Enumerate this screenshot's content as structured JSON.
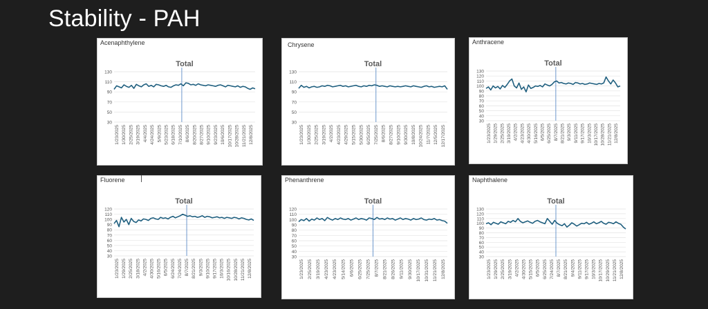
{
  "slide": {
    "title": "Stability - PAH"
  },
  "colors": {
    "series": "#1f5f7f",
    "marker": "#4a7fc1",
    "grid": "#e3e3e3",
    "axis_text": "#555555"
  },
  "chart_data": [
    {
      "panel_label": "Acenaphthylene",
      "type": "line",
      "title": "Total",
      "ylim": [
        30,
        130
      ],
      "yticks": [
        30,
        50,
        70,
        90,
        110,
        130
      ],
      "x_tick_labels": [
        "1/23/2025",
        "1/30/2025",
        "2/25/2025",
        "3/19/2025",
        "4/4/2025",
        "4/24/2025",
        "5/9/2025",
        "5/23/2025",
        "6/18/2025",
        "7/10/2025",
        "8/6/2025",
        "8/20/2025",
        "8/27/2025",
        "9/10/2025",
        "9/23/2025",
        "10/6/2025",
        "10/17/2025",
        "10/28/2025",
        "11/21/2025",
        "12/8/2025"
      ],
      "marker_at": 0.48,
      "series": [
        {
          "values": [
            95,
            102,
            100,
            98,
            104,
            101,
            99,
            103,
            97,
            105,
            102,
            100,
            104,
            106,
            101,
            103,
            100,
            105,
            104,
            102,
            101,
            103,
            100,
            99,
            102,
            104,
            103,
            106,
            102,
            108,
            107,
            104,
            105,
            103,
            106,
            104,
            103,
            102,
            104,
            103,
            102,
            101,
            103,
            104,
            102,
            100,
            103,
            102,
            101,
            100,
            102,
            99,
            101,
            100,
            97,
            95,
            98,
            96
          ]
        }
      ]
    },
    {
      "panel_label": "Chrysene",
      "type": "line",
      "title": "Total",
      "ylim": [
        30,
        130
      ],
      "yticks": [
        30,
        50,
        70,
        90,
        110,
        130
      ],
      "x_tick_labels": [
        "1/23/2025",
        "1/30/2025",
        "2/25/2025",
        "3/19/2025",
        "4/2/2025",
        "4/23/2025",
        "4/29/2025",
        "5/15/2025",
        "5/30/2025",
        "6/25/2025",
        "7/25/2025",
        "8/6/2025",
        "8/27/2025",
        "9/10/2025",
        "9/30/2025",
        "10/8/2025",
        "10/24/2025",
        "11/7/2025",
        "12/5/2025",
        "12/17/2025"
      ],
      "marker_at": 0.52,
      "series": [
        {
          "values": [
            97,
            103,
            99,
            101,
            98,
            100,
            101,
            99,
            100,
            102,
            101,
            103,
            102,
            100,
            101,
            102,
            103,
            101,
            102,
            100,
            101,
            102,
            103,
            101,
            100,
            102,
            101,
            103,
            102,
            104,
            103,
            101,
            102,
            101,
            100,
            102,
            101,
            100,
            101,
            100,
            101,
            102,
            101,
            100,
            102,
            101,
            100,
            99,
            101,
            102,
            100,
            101,
            99,
            100,
            101,
            100,
            102,
            95
          ]
        }
      ]
    },
    {
      "panel_label": "Anthracene",
      "type": "line",
      "title": "Total",
      "ylim": [
        30,
        130
      ],
      "yticks": [
        30,
        40,
        50,
        60,
        70,
        80,
        90,
        100,
        110,
        120,
        130
      ],
      "x_tick_labels": [
        "1/23/2025",
        "1/29/2025",
        "2/25/2025",
        "3/19/2025",
        "4/2/2025",
        "4/23/2025",
        "4/30/2025",
        "5/16/2025",
        "6/5/2025",
        "6/25/2025",
        "8/7/2025",
        "8/21/2025",
        "9/3/2025",
        "9/11/2025",
        "9/17/2025",
        "10/3/2025",
        "10/17/2025",
        "10/28/2025",
        "11/21/2025",
        "12/8/2025"
      ],
      "marker_at": 0.52,
      "series": [
        {
          "values": [
            95,
            98,
            92,
            100,
            96,
            99,
            94,
            101,
            97,
            103,
            110,
            114,
            100,
            96,
            106,
            93,
            98,
            88,
            102,
            95,
            97,
            100,
            99,
            101,
            98,
            104,
            102,
            100,
            103,
            108,
            110,
            106,
            107,
            105,
            104,
            106,
            105,
            103,
            107,
            106,
            104,
            105,
            103,
            104,
            106,
            105,
            104,
            103,
            105,
            104,
            106,
            118,
            110,
            104,
            112,
            106,
            98,
            100
          ]
        }
      ]
    },
    {
      "panel_label": "Fluorene",
      "type": "line",
      "title": "Total",
      "ylim": [
        30,
        120
      ],
      "yticks": [
        30,
        40,
        50,
        60,
        70,
        80,
        90,
        100,
        110,
        120
      ],
      "x_tick_labels": [
        "1/23/2025",
        "1/29/2025",
        "2/25/2025",
        "3/18/2025",
        "4/2/2025",
        "4/30/2025",
        "5/16/2025",
        "6/5/2025",
        "6/24/2025",
        "7/24/2025",
        "8/7/2025",
        "8/21/2025",
        "9/3/2025",
        "9/10/2025",
        "9/17/2025",
        "10/3/2025",
        "10/16/2025",
        "10/28/2025",
        "11/21/2025",
        "12/8/2025"
      ],
      "marker_at": 0.52,
      "series": [
        {
          "values": [
            92,
            98,
            86,
            104,
            95,
            100,
            90,
            102,
            96,
            94,
            99,
            97,
            101,
            100,
            98,
            102,
            103,
            101,
            100,
            104,
            102,
            103,
            101,
            104,
            106,
            103,
            105,
            107,
            110,
            108,
            106,
            107,
            105,
            106,
            104,
            105,
            107,
            104,
            106,
            105,
            103,
            104,
            105,
            103,
            104,
            102,
            104,
            103,
            102,
            104,
            103,
            101,
            103,
            102,
            100,
            99,
            101,
            98
          ]
        }
      ]
    },
    {
      "panel_label": "Phenanthrene",
      "type": "line",
      "title": "Total",
      "ylim": [
        30,
        120
      ],
      "yticks": [
        30,
        40,
        50,
        60,
        70,
        80,
        90,
        100,
        110,
        120
      ],
      "x_tick_labels": [
        "1/23/2025",
        "2/25/2025",
        "3/19/2025",
        "4/23/2025",
        "4/23/2025",
        "5/14/2025",
        "6/6/2025",
        "6/25/2025",
        "7/25/2025",
        "8/7/2025",
        "8/21/2025",
        "8/26/2025",
        "9/11/2025",
        "9/30/2025",
        "10/17/2025",
        "10/31/2025",
        "11/21/2025",
        "12/8/2025"
      ],
      "marker_at": 0.5,
      "series": [
        {
          "values": [
            96,
            100,
            98,
            102,
            97,
            101,
            99,
            103,
            100,
            102,
            98,
            104,
            101,
            99,
            102,
            100,
            103,
            101,
            100,
            102,
            99,
            101,
            103,
            100,
            102,
            101,
            99,
            103,
            102,
            100,
            104,
            101,
            102,
            100,
            103,
            101,
            102,
            99,
            101,
            103,
            100,
            102,
            101,
            99,
            102,
            100,
            101,
            103,
            100,
            99,
            101,
            100,
            102,
            99,
            100,
            98,
            97,
            93
          ]
        }
      ]
    },
    {
      "panel_label": "Naphthalene",
      "type": "line",
      "title": "Total",
      "ylim": [
        30,
        130
      ],
      "yticks": [
        30,
        40,
        50,
        60,
        70,
        80,
        90,
        100,
        110,
        120,
        130
      ],
      "x_tick_labels": [
        "1/23/2025",
        "1/29/2025",
        "2/25/2025",
        "3/19/2025",
        "4/2/2025",
        "4/30/2025",
        "5/15/2025",
        "6/5/2025",
        "6/25/2025",
        "7/24/2025",
        "8/7/2025",
        "8/21/2025",
        "9/4/2025",
        "9/11/2025",
        "9/17/2025",
        "10/3/2025",
        "10/17/2025",
        "10/29/2025",
        "11/21/2025",
        "12/8/2025"
      ],
      "marker_at": 0.5,
      "series": [
        {
          "values": [
            99,
            101,
            97,
            102,
            100,
            98,
            103,
            101,
            99,
            104,
            102,
            106,
            103,
            110,
            104,
            101,
            103,
            105,
            102,
            100,
            104,
            106,
            103,
            101,
            99,
            110,
            104,
            98,
            106,
            100,
            97,
            95,
            99,
            92,
            96,
            101,
            98,
            94,
            97,
            100,
            99,
            102,
            98,
            100,
            103,
            99,
            101,
            104,
            100,
            98,
            102,
            101,
            99,
            103,
            100,
            98,
            92,
            88
          ]
        }
      ]
    }
  ]
}
